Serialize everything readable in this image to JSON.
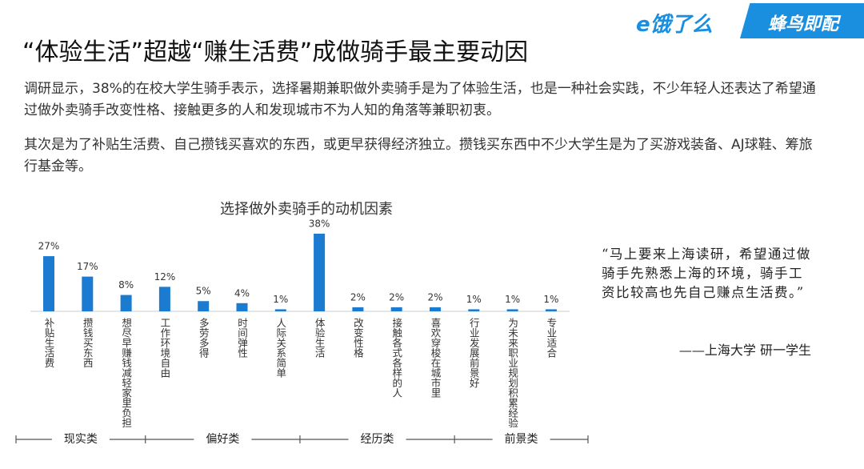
{
  "logo_eleme": "e饿了么",
  "logo_fengniao": "蜂鸟即配",
  "title": "“体验生活”超越“赚生活费”成做骑手最主要动因",
  "paragraphs": [
    "调研显示，38%的在校大学生骑手表示，选择暑期兼职做外卖骑手是为了体验生活，也是一种社会实践，不少年轻人还表达了希望通过做外卖骑手改变性格、接触更多的人和发现城市不为人知的角落等兼职初衷。",
    "其次是为了补贴生活费、自己攒钱买喜欢的东西，或更早获得经济独立。攒钱买东西中不少大学生是为了买游戏装备、AJ球鞋、筹旅行基金等。"
  ],
  "chart_data": {
    "type": "bar",
    "title": "选择做外卖骑手的动机因素",
    "categories": [
      "补贴生活费",
      "攒钱买东西",
      "想尽早赚钱减轻家里负担",
      "工作环境自由",
      "多劳多得",
      "时间弹性",
      "人际关系简单",
      "体验生活",
      "改变性格",
      "接触各式各样的人",
      "喜欢穿梭在城市里",
      "行业发展前景好",
      "为未来职业规划积累经验",
      "专业适合"
    ],
    "values": [
      27,
      17,
      8,
      12,
      5,
      4,
      1,
      38,
      2,
      2,
      2,
      1,
      1,
      1
    ],
    "value_labels": [
      "27%",
      "17%",
      "8%",
      "12%",
      "5%",
      "4%",
      "1%",
      "38%",
      "2%",
      "2%",
      "2%",
      "1%",
      "1%",
      "1%"
    ],
    "color": "#1a7bd0",
    "groups": [
      "现实类",
      "偏好类",
      "经历类",
      "前景类"
    ]
  },
  "quote": {
    "text": "“马上要来上海读研，希望通过做骑手先熟悉上海的环境，骑手工资比较高也先自己赚点生活费。”",
    "source": "——上海大学 研一学生"
  }
}
